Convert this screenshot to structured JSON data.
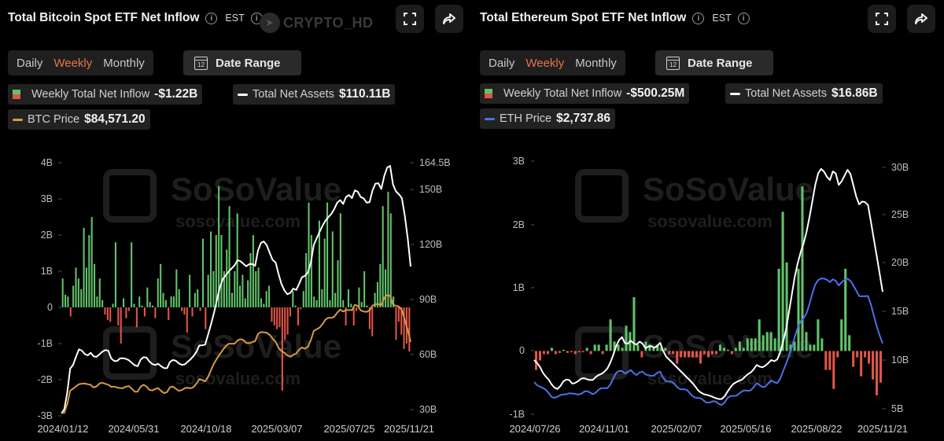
{
  "header": {
    "watermark": "CRYPTO_HD"
  },
  "segments": [
    "Daily",
    "Weekly",
    "Monthly"
  ],
  "active_segment": "Weekly",
  "date_range_label": "Date Range",
  "chart_watermark": {
    "brand": "SoSoValue",
    "url": "sosovalue.com"
  },
  "colors": {
    "positive": "#62c26a",
    "negative": "#e05548",
    "assets_line": "#ffffff",
    "btc_price_line": "#d79a45",
    "eth_price_line": "#4a72e8",
    "active_tab": "#e8754a",
    "background": "#000000"
  },
  "btc": {
    "title": "Total Bitcoin Spot ETF Net Inflow",
    "timezone": "EST",
    "legend": {
      "inflow_label": "Weekly Total Net Inflow",
      "inflow_value": "-$1.22B",
      "assets_label": "Total Net Assets",
      "assets_value": "$110.11B",
      "price_label": "BTC Price",
      "price_value": "$84,571.20"
    }
  },
  "eth": {
    "title": "Total Ethereum Spot ETF Net Inflow",
    "timezone": "EST",
    "legend": {
      "inflow_label": "Weekly Total Net Inflow",
      "inflow_value": "-$500.25M",
      "assets_label": "Total Net Assets",
      "assets_value": "$16.86B",
      "price_label": "ETH Price",
      "price_value": "$2,737.86"
    }
  },
  "chart_data": [
    {
      "type": "bar",
      "id": "btc",
      "title": "Total Bitcoin Spot ETF Net Inflow",
      "left_axis": {
        "ticks": [
          "4B",
          "3B",
          "2B",
          "1B",
          "0",
          "-1B",
          "-2B",
          "-3B"
        ],
        "ylim": [
          -3,
          4
        ]
      },
      "right_axis": {
        "ticks": [
          "164.5B",
          "150B",
          "120B",
          "90B",
          "60B",
          "30B"
        ]
      },
      "x_ticks": [
        "2024/01/12",
        "2024/05/31",
        "2024/10/18",
        "2025/03/07",
        "2025/07/25",
        "2025/11/21"
      ],
      "series": [
        {
          "name": "Weekly Total Net Inflow",
          "kind": "bar",
          "values": [
            0.8,
            0.35,
            0.3,
            -0.25,
            0.6,
            1.1,
            0.8,
            0.5,
            2.2,
            1.1,
            2.0,
            2.5,
            1.2,
            0.3,
            0.8,
            0.2,
            -0.2,
            -0.35,
            -0.4,
            0.1,
            1.8,
            -0.5,
            -1.0,
            0.25,
            -0.3,
            -0.1,
            1.8,
            0.1,
            -0.55,
            0.3,
            0.05,
            -0.25,
            0.55,
            0.15,
            0.05,
            -0.3,
            0.8,
            1.2,
            0.4,
            0.2,
            -0.35,
            0.3,
            0.3,
            1.05,
            0.5,
            -0.1,
            -0.2,
            -0.7,
            0.9,
            -0.25,
            0.4,
            0.5,
            -0.1,
            1.9,
            -0.6,
            0.9,
            2.1,
            1.0,
            2.0,
            3.35,
            2.0,
            1.0,
            1.6,
            2.8,
            0.4,
            1.0,
            2.6,
            0.6,
            0.9,
            0.25,
            0.75,
            1.5,
            2.0,
            1.0,
            1.1,
            0.25,
            0.1,
            0.45,
            0.6,
            -0.4,
            -0.5,
            -0.6,
            -0.55,
            -2.3,
            -0.9,
            -0.75,
            -0.25,
            0.45,
            0.05,
            -0.5,
            -0.05,
            0.45,
            1.5,
            2.9,
            2.0,
            0.3,
            0.2,
            2.4,
            0.5,
            1.9,
            2.9,
            0.2,
            2.1,
            0.4,
            1.3,
            2.6,
            0.2,
            -0.5,
            0.5,
            0.1,
            -0.5,
            -0.1,
            0.55,
            0.15,
            1.0,
            0.05,
            -0.6,
            -0.8,
            0.4,
            0.7,
            1.2,
            2.8,
            1.05,
            3.2,
            2.6,
            0.3,
            -0.9,
            -0.4,
            -0.75,
            -1.15,
            -1.0,
            -1.22
          ]
        },
        {
          "name": "Total Net Assets",
          "kind": "line",
          "values": [
            28,
            31,
            52,
            55,
            63,
            62,
            59,
            61,
            58,
            60,
            62,
            63,
            57,
            56,
            58,
            58,
            57,
            55,
            53,
            58,
            59,
            56,
            54,
            55,
            53,
            52,
            57,
            57,
            55,
            54,
            56,
            58,
            61,
            66,
            64,
            72,
            80,
            90,
            100,
            103,
            106,
            108,
            112,
            110,
            108,
            110,
            108,
            120,
            122,
            119,
            112,
            110,
            100,
            95,
            92,
            96,
            95,
            102,
            103,
            106,
            120,
            125,
            130,
            134,
            136,
            140,
            145,
            142,
            148,
            145,
            151,
            146,
            145,
            141,
            150,
            155,
            150,
            160,
            164.5,
            150,
            148,
            145,
            130,
            108
          ]
        },
        {
          "name": "BTC Price",
          "kind": "line"
        }
      ]
    },
    {
      "type": "bar",
      "id": "eth",
      "title": "Total Ethereum Spot ETF Net Inflow",
      "left_axis": {
        "ticks": [
          "3B",
          "2B",
          "1B",
          "0",
          "-1B"
        ],
        "ylim": [
          -1,
          3
        ]
      },
      "right_axis": {
        "ticks": [
          "30B",
          "25B",
          "20B",
          "15B",
          "10B",
          "5B"
        ],
        "ylim": [
          5,
          30
        ]
      },
      "x_ticks": [
        "2024/07/26",
        "2024/11/01",
        "2025/02/07",
        "2025/05/16",
        "2025/08/22",
        "2025/11/21"
      ],
      "series": [
        {
          "name": "Weekly Total Net Inflow",
          "kind": "bar",
          "values": [
            -0.3,
            -0.15,
            -0.05,
            -0.05,
            0.05,
            -0.05,
            -0.03,
            0.02,
            -0.03,
            -0.02,
            -0.05,
            -0.02,
            -0.02,
            0.05,
            -0.05,
            0.1,
            0.1,
            -0.05,
            0.1,
            0.5,
            0.15,
            0.1,
            0.05,
            0.4,
            0.3,
            0.85,
            0.1,
            -0.1,
            0.15,
            0.1,
            0.05,
            0.1,
            0.05,
            0.05,
            -0.05,
            -0.05,
            -0.2,
            -0.1,
            -0.1,
            -0.1,
            -0.1,
            -0.1,
            -0.2,
            -0.05,
            -0.1,
            -0.05,
            -0.05,
            0.1,
            0.05,
            0.02,
            -0.05,
            0.05,
            0.15,
            0.05,
            0.2,
            0.2,
            0.2,
            0.5,
            0.25,
            0.3,
            0.3,
            0.2,
            1.3,
            2.2,
            1.4,
            0.1,
            0.15,
            1.3,
            2.6,
            0.3,
            0.1,
            0.1,
            0.5,
            0.2,
            -0.3,
            -0.3,
            -0.6,
            -0.1,
            0.5,
            1.3,
            0.25,
            -0.25,
            -0.1,
            -0.4,
            -0.1,
            -0.2,
            -0.45,
            -0.7,
            -0.5
          ]
        },
        {
          "name": "Total Net Assets",
          "kind": "line",
          "values": [
            10,
            9.5,
            8.5,
            8,
            7.2,
            7,
            7.8,
            8.1,
            7.5,
            7.8,
            8.2,
            8,
            7.9,
            8.4,
            8.6,
            9,
            10,
            11.5,
            12.5,
            11.5,
            12,
            11.5,
            12,
            11.2,
            11.5,
            11.2,
            11.8,
            10.5,
            10,
            9.5,
            9,
            8.5,
            8,
            7.5,
            6.8,
            6.5,
            6.4,
            6.2,
            6,
            6,
            6.8,
            7.5,
            7.8,
            8,
            8.5,
            8.8,
            9.5,
            9.2,
            9.5,
            10,
            9.8,
            11,
            13,
            16,
            19,
            21,
            22.5,
            25,
            28,
            30,
            29.5,
            28.5,
            30,
            28,
            29,
            30,
            28,
            26,
            26.5,
            26,
            23,
            20,
            17
          ]
        },
        {
          "name": "ETH Price",
          "kind": "line"
        }
      ]
    }
  ]
}
